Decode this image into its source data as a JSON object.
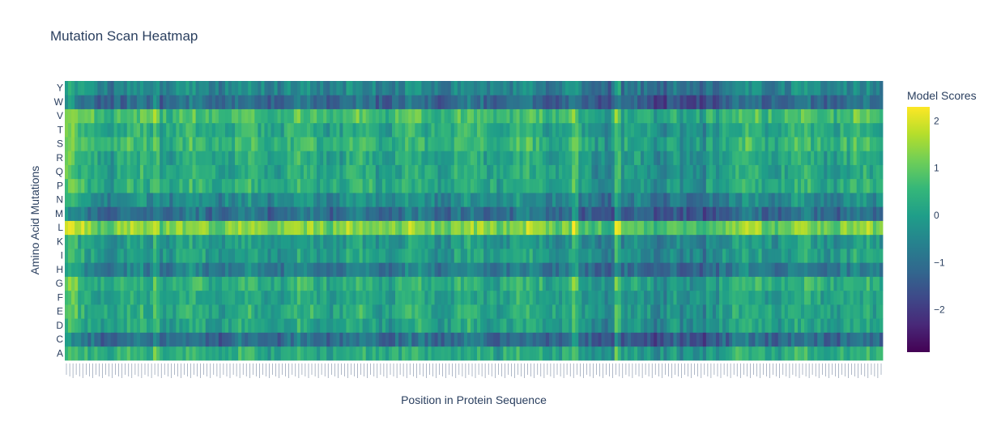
{
  "chart_data": {
    "type": "heatmap",
    "title": "Mutation Scan Heatmap",
    "xlabel": "Position in Protein Sequence",
    "ylabel": "Amino Acid Mutations",
    "colorbar_title": "Model Scores",
    "colorscale": "viridis",
    "zlim": [
      -2.9,
      2.3
    ],
    "colorbar_ticks": [
      {
        "value": 2,
        "label": "2"
      },
      {
        "value": 1,
        "label": "1"
      },
      {
        "value": 0,
        "label": "0"
      },
      {
        "value": -1,
        "label": "−1"
      },
      {
        "value": -2,
        "label": "−2"
      }
    ],
    "y_categories": [
      "A",
      "C",
      "D",
      "E",
      "F",
      "G",
      "H",
      "I",
      "K",
      "L",
      "M",
      "N",
      "P",
      "Q",
      "R",
      "S",
      "T",
      "V",
      "W",
      "Y"
    ],
    "n_positions": 250,
    "row_means": {
      "A": 0.35,
      "C": -1.0,
      "D": 0.1,
      "E": 0.2,
      "F": 0.15,
      "G": 0.4,
      "H": -0.7,
      "I": 0.0,
      "K": -0.1,
      "L": 1.3,
      "M": -1.0,
      "N": -0.4,
      "P": 0.3,
      "Q": 0.2,
      "R": 0.2,
      "S": 0.5,
      "T": 0.3,
      "V": 0.7,
      "W": -1.1,
      "Y": -0.5
    },
    "column_profile": [
      {
        "from": 0,
        "to": 4,
        "shift": 0.6
      },
      {
        "from": 27,
        "to": 29,
        "shift": 0.6
      },
      {
        "from": 155,
        "to": 157,
        "shift": 0.6
      },
      {
        "from": 156,
        "to": 184,
        "shift": -0.5
      },
      {
        "from": 168,
        "to": 170,
        "shift": 1.2
      },
      {
        "from": 185,
        "to": 200,
        "shift": -0.2
      },
      {
        "from": 188,
        "to": 196,
        "shift": -0.6
      },
      {
        "from": 250,
        "to": 250,
        "shift": 0.0
      }
    ]
  }
}
